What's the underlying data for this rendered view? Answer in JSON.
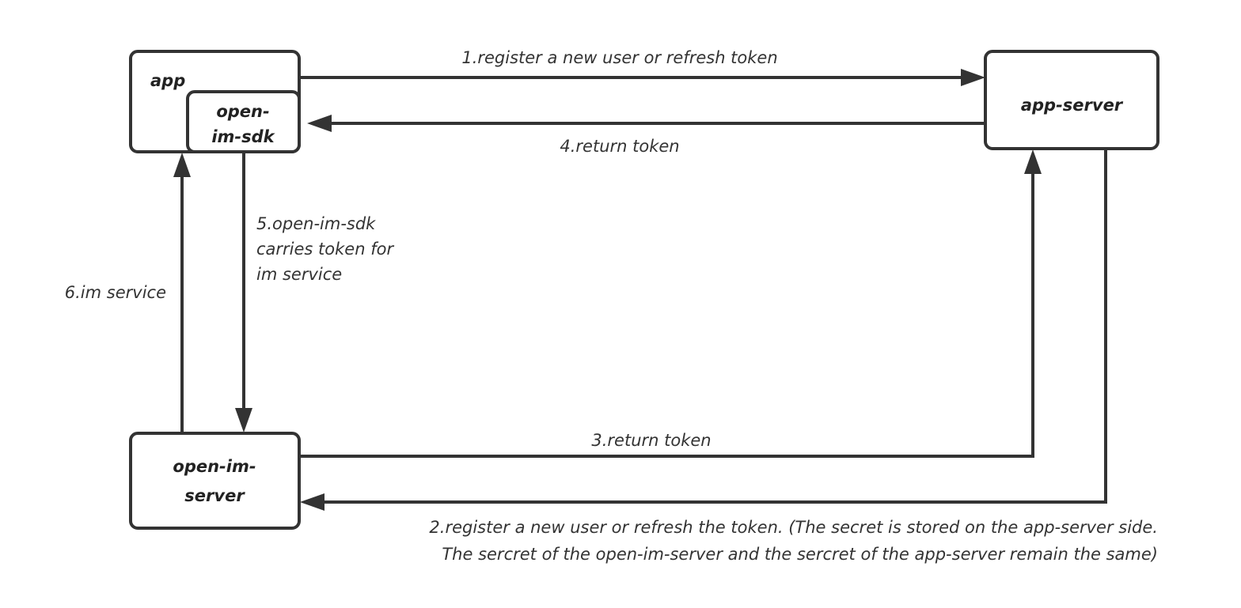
{
  "colors": {
    "stroke": "#333333",
    "background": "#ffffff"
  },
  "nodes": {
    "app": "app",
    "sdk_line1": "open-",
    "sdk_line2": "im-sdk",
    "app_server": "app-server",
    "im_server_line1": "open-im-",
    "im_server_line2": "server"
  },
  "edges": {
    "step1": "1.register a new user or refresh token",
    "step2_line1": "2.register a new user or refresh the token. (The secret is stored on the app-server side.",
    "step2_line2": "The sercret of the open-im-server and the sercret of the app-server remain the same)",
    "step3": "3.return token",
    "step4": "4.return token",
    "step5_line1": "5.open-im-sdk",
    "step5_line2": "carries token for",
    "step5_line3": "im service",
    "step6": "6.im service"
  }
}
